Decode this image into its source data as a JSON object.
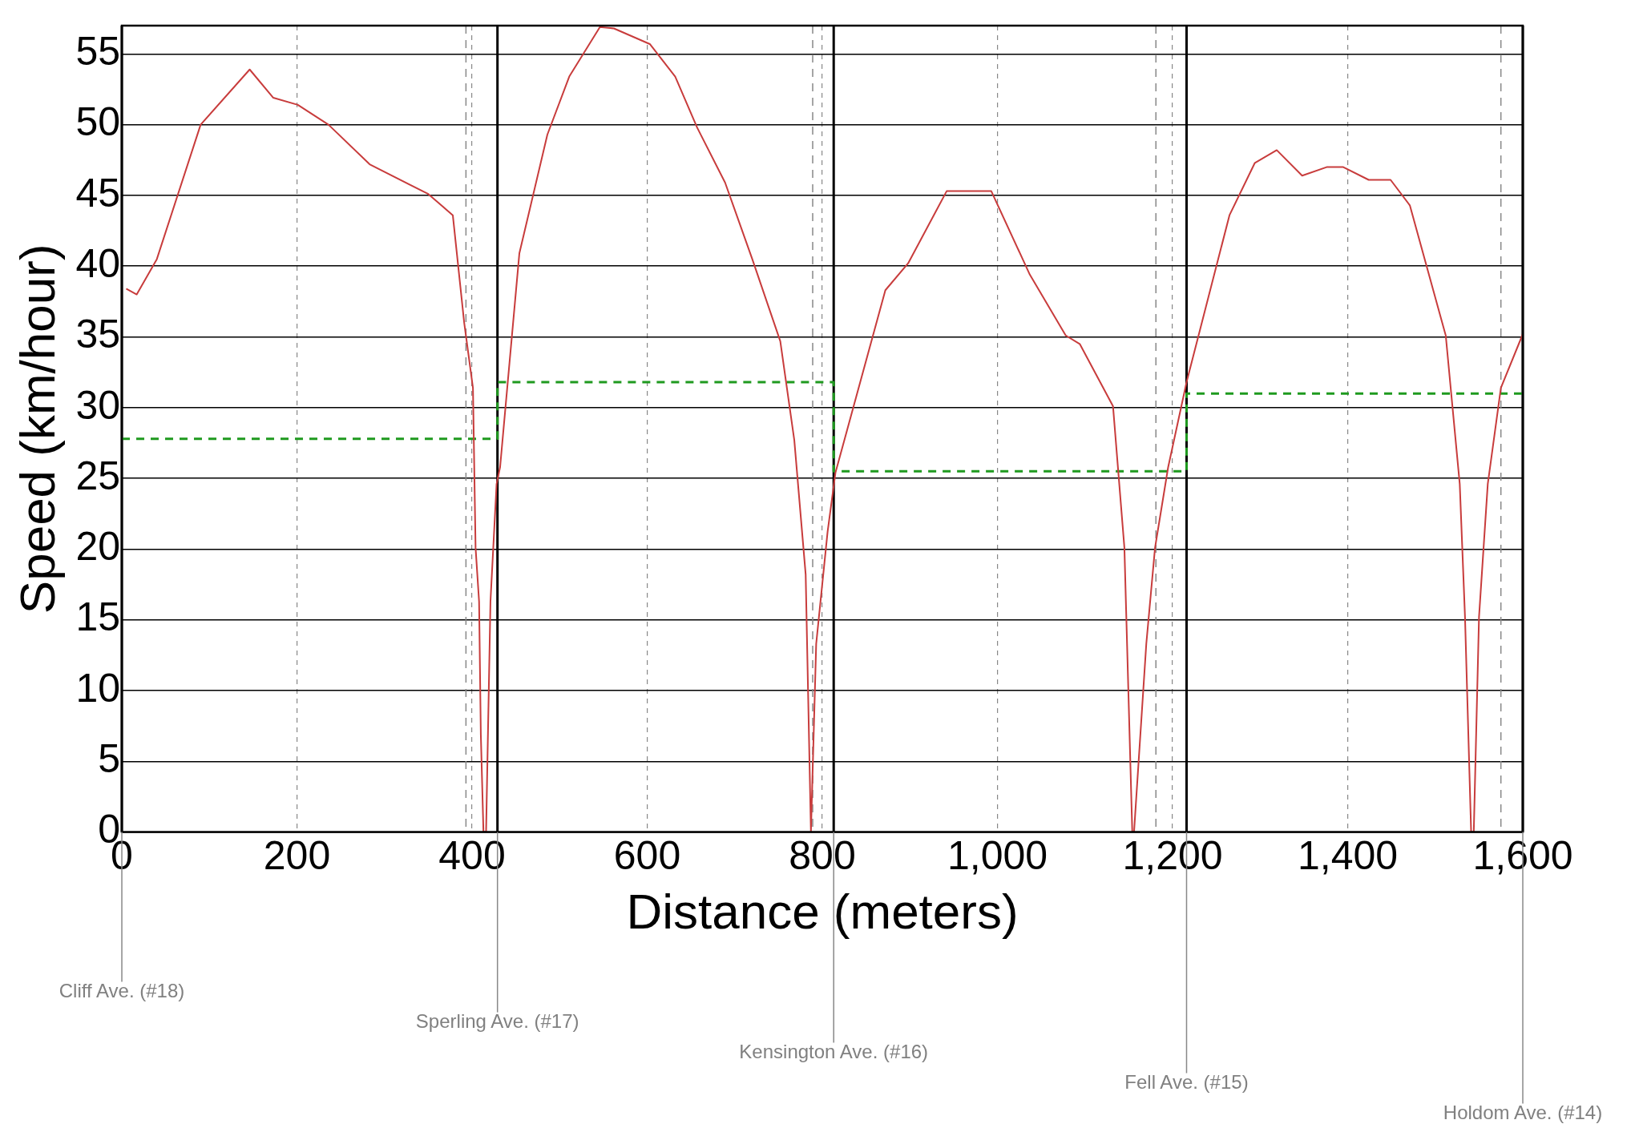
{
  "chart_data": {
    "type": "line",
    "xlabel": "Distance (meters)",
    "ylabel": "Speed (km/hour)",
    "xlim": [
      0,
      1600
    ],
    "ylim": [
      0,
      57
    ],
    "xticks": [
      0,
      200,
      400,
      600,
      800,
      {
        "value": 1000,
        "label": "1,000"
      },
      {
        "value": 1200,
        "label": "1,200"
      },
      {
        "value": 1400,
        "label": "1,400"
      },
      {
        "value": 1600,
        "label": "1,600"
      }
    ],
    "yticks": [
      0,
      5,
      10,
      15,
      20,
      25,
      30,
      35,
      40,
      45,
      50,
      55
    ],
    "grid": true,
    "marker": "none",
    "series": [
      {
        "type": "line",
        "color": "#c83c3c",
        "line_style": "solid",
        "x": [
          5,
          17,
          40,
          90,
          146,
          173,
          201,
          236,
          283,
          350,
          378,
          391,
          401,
          404,
          408,
          410,
          413,
          416,
          421,
          428,
          432,
          454,
          486,
          511,
          546,
          562,
          603,
          632,
          657,
          689,
          720,
          752,
          768,
          781,
          787,
          793,
          806,
          815,
          872,
          898,
          942,
          993,
          1037,
          1078,
          1094,
          1132,
          1145,
          1154,
          1156,
          1170,
          1180,
          1195,
          1216,
          1265,
          1294,
          1319,
          1348,
          1376,
          1395,
          1424,
          1449,
          1471,
          1512,
          1528,
          1534,
          1541,
          1544,
          1550,
          1560,
          1575,
          1600
        ],
        "values": [
          38.4,
          38.0,
          40.5,
          50.0,
          53.9,
          51.9,
          51.4,
          50.0,
          47.2,
          45.1,
          43.6,
          36.0,
          31.4,
          20.1,
          16.3,
          6.9,
          0,
          0,
          16.3,
          24.6,
          25.8,
          40.9,
          49.3,
          53.4,
          56.9,
          56.8,
          55.7,
          53.4,
          49.8,
          45.9,
          40.5,
          34.7,
          27.7,
          18.2,
          0,
          13.3,
          21.2,
          25.4,
          38.3,
          40.2,
          45.3,
          45.3,
          39.4,
          35.1,
          34.5,
          30.1,
          20.1,
          0,
          0,
          13.3,
          20.1,
          25.8,
          31.8,
          43.6,
          47.3,
          48.2,
          46.4,
          47.0,
          47.0,
          46.1,
          46.1,
          44.3,
          35.1,
          24.6,
          15.2,
          0,
          0,
          15.2,
          24.6,
          31.4,
          35.2
        ]
      },
      {
        "type": "step",
        "color": "#1f9a1f",
        "line_style": "dashed",
        "x": [
          0,
          429,
          813,
          1216,
          1600
        ],
        "values": [
          27.8,
          31.8,
          25.5,
          31.0,
          31.0
        ]
      }
    ],
    "ref_lines": [
      {
        "axis": "x",
        "value": 0,
        "label": "Cliff Ave. (#18)",
        "color": "#000000",
        "line_style": "solid"
      },
      {
        "axis": "x",
        "value": 429,
        "label": "Sperling Ave. (#17)",
        "color": "#000000",
        "line_style": "solid"
      },
      {
        "axis": "x",
        "value": 813,
        "label": "Kensington Ave. (#16)",
        "color": "#000000",
        "line_style": "solid"
      },
      {
        "axis": "x",
        "value": 1216,
        "label": "Fell Ave. (#15)",
        "color": "#000000",
        "line_style": "solid"
      },
      {
        "axis": "x",
        "value": 1600,
        "label": "Holdom Ave. (#14)",
        "color": "#000000",
        "line_style": "solid"
      },
      {
        "axis": "x",
        "value": 393,
        "color": "#888888",
        "line_style": "dashed"
      },
      {
        "axis": "x",
        "value": 789,
        "color": "#888888",
        "line_style": "dashed"
      },
      {
        "axis": "x",
        "value": 1181,
        "color": "#888888",
        "line_style": "dashed"
      },
      {
        "axis": "x",
        "value": 1575,
        "color": "#888888",
        "line_style": "dashed"
      }
    ]
  }
}
